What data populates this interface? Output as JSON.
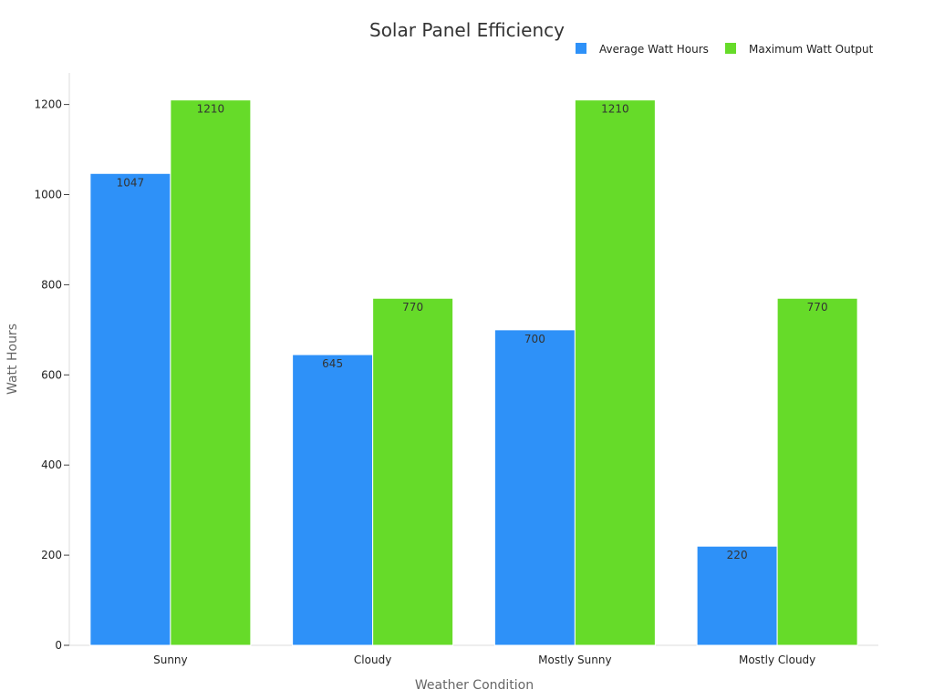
{
  "chart_data": {
    "type": "bar",
    "title": "Solar Panel Efficiency",
    "xlabel": "Weather Condition",
    "ylabel": "Watt Hours",
    "categories": [
      "Sunny",
      "Cloudy",
      "Mostly Sunny",
      "Mostly Cloudy"
    ],
    "series": [
      {
        "name": "Average Watt Hours",
        "values": [
          1047,
          645,
          700,
          220
        ],
        "color": "#2e91f8"
      },
      {
        "name": "Maximum Watt Output",
        "values": [
          1210,
          770,
          1210,
          770
        ],
        "color": "#66db29"
      }
    ],
    "ylim": [
      0,
      1270
    ],
    "yticks": [
      0,
      200,
      400,
      600,
      800,
      1000,
      1200
    ],
    "grid": false,
    "legend_position": "top-right",
    "data_labels": true
  }
}
